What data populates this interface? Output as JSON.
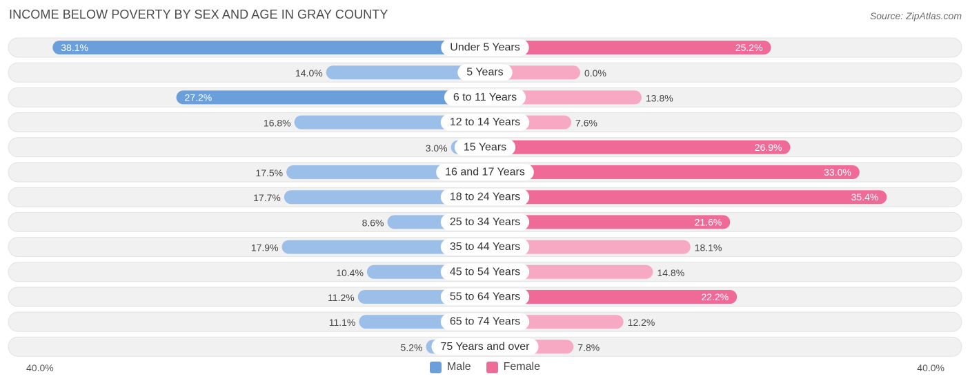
{
  "title": "INCOME BELOW POVERTY BY SEX AND AGE IN GRAY COUNTY",
  "source": "Source: ZipAtlas.com",
  "axis": {
    "left_label": "40.0%",
    "right_label": "40.0%"
  },
  "legend": {
    "male": "Male",
    "female": "Female"
  },
  "colors": {
    "male_strong": "#6a9fdc",
    "male_light": "#9bbfe8",
    "female_strong": "#f06a98",
    "female_light": "#f7a9c3",
    "row_bg": "#f1f1f1",
    "row_border": "#e2e2e2"
  },
  "chart_data": {
    "type": "bar",
    "orientation": "horizontal-diverging",
    "title": "INCOME BELOW POVERTY BY SEX AND AGE IN GRAY COUNTY",
    "xlim": [
      -40,
      40
    ],
    "categories": [
      "Under 5 Years",
      "5 Years",
      "6 to 11 Years",
      "12 to 14 Years",
      "15 Years",
      "16 and 17 Years",
      "18 to 24 Years",
      "25 to 34 Years",
      "35 to 44 Years",
      "45 to 54 Years",
      "55 to 64 Years",
      "65 to 74 Years",
      "75 Years and over"
    ],
    "series": [
      {
        "name": "Male",
        "values": [
          38.1,
          14.0,
          27.2,
          16.8,
          3.0,
          17.5,
          17.7,
          8.6,
          17.9,
          10.4,
          11.2,
          11.1,
          5.2
        ],
        "labels": [
          "38.1%",
          "14.0%",
          "27.2%",
          "16.8%",
          "3.0%",
          "17.5%",
          "17.7%",
          "8.6%",
          "17.9%",
          "10.4%",
          "11.2%",
          "11.1%",
          "5.2%"
        ]
      },
      {
        "name": "Female",
        "values": [
          25.2,
          0.0,
          13.8,
          7.6,
          26.9,
          33.0,
          35.4,
          21.6,
          18.1,
          14.8,
          22.2,
          12.2,
          7.8
        ],
        "labels": [
          "25.2%",
          "0.0%",
          "13.8%",
          "7.6%",
          "26.9%",
          "33.0%",
          "35.4%",
          "21.6%",
          "18.1%",
          "14.8%",
          "22.2%",
          "12.2%",
          "7.8%"
        ]
      }
    ]
  }
}
